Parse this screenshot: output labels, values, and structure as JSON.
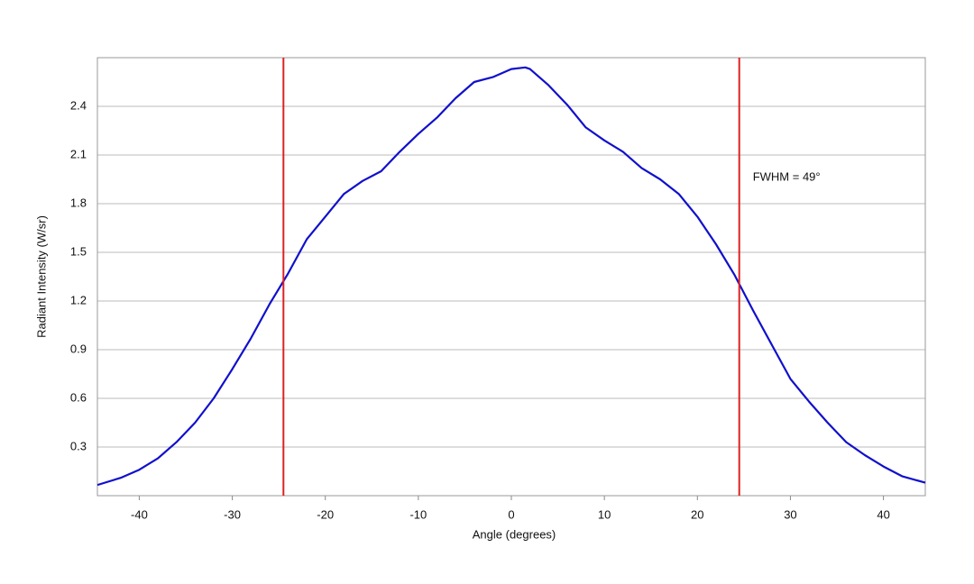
{
  "chart_data": {
    "type": "line",
    "x_label": "Angle (degrees)",
    "y_label": "Radiant Intensity (W/sr)",
    "x": [
      -44.5,
      -42,
      -40,
      -38,
      -36,
      -34,
      -32,
      -30,
      -28,
      -26,
      -24,
      -22,
      -20,
      -18,
      -16,
      -14,
      -12,
      -10,
      -8,
      -6,
      -4,
      -2,
      0,
      1.5,
      2,
      4,
      6,
      8,
      10,
      12,
      14,
      16,
      18,
      20,
      22,
      24,
      26,
      28,
      30,
      32,
      34,
      36,
      38,
      40,
      42,
      44.5
    ],
    "series": [
      {
        "color": "#1010cc",
        "values": [
          0.066,
          0.11,
          0.16,
          0.23,
          0.33,
          0.45,
          0.6,
          0.78,
          0.97,
          1.18,
          1.37,
          1.58,
          1.72,
          1.86,
          1.94,
          2.0,
          2.12,
          2.23,
          2.33,
          2.45,
          2.55,
          2.58,
          2.63,
          2.64,
          2.63,
          2.53,
          2.41,
          2.27,
          2.19,
          2.12,
          2.02,
          1.95,
          1.86,
          1.72,
          1.55,
          1.36,
          1.14,
          0.93,
          0.72,
          0.58,
          0.45,
          0.33,
          0.25,
          0.18,
          0.12,
          0.08
        ]
      }
    ],
    "vlines": [
      -24.5,
      24.5
    ],
    "vline_color": "#dd2222",
    "annotation": "FWHM = 49°",
    "xlim": [
      -44.5,
      44.5
    ],
    "xticks": [
      -40,
      -30,
      -20,
      -10,
      0,
      10,
      20,
      30,
      40
    ],
    "ylim": [
      0,
      2.7
    ],
    "yticks": [
      0.3,
      0.6,
      0.9,
      1.2,
      1.5,
      1.8,
      2.1,
      2.4
    ],
    "grid": true
  }
}
